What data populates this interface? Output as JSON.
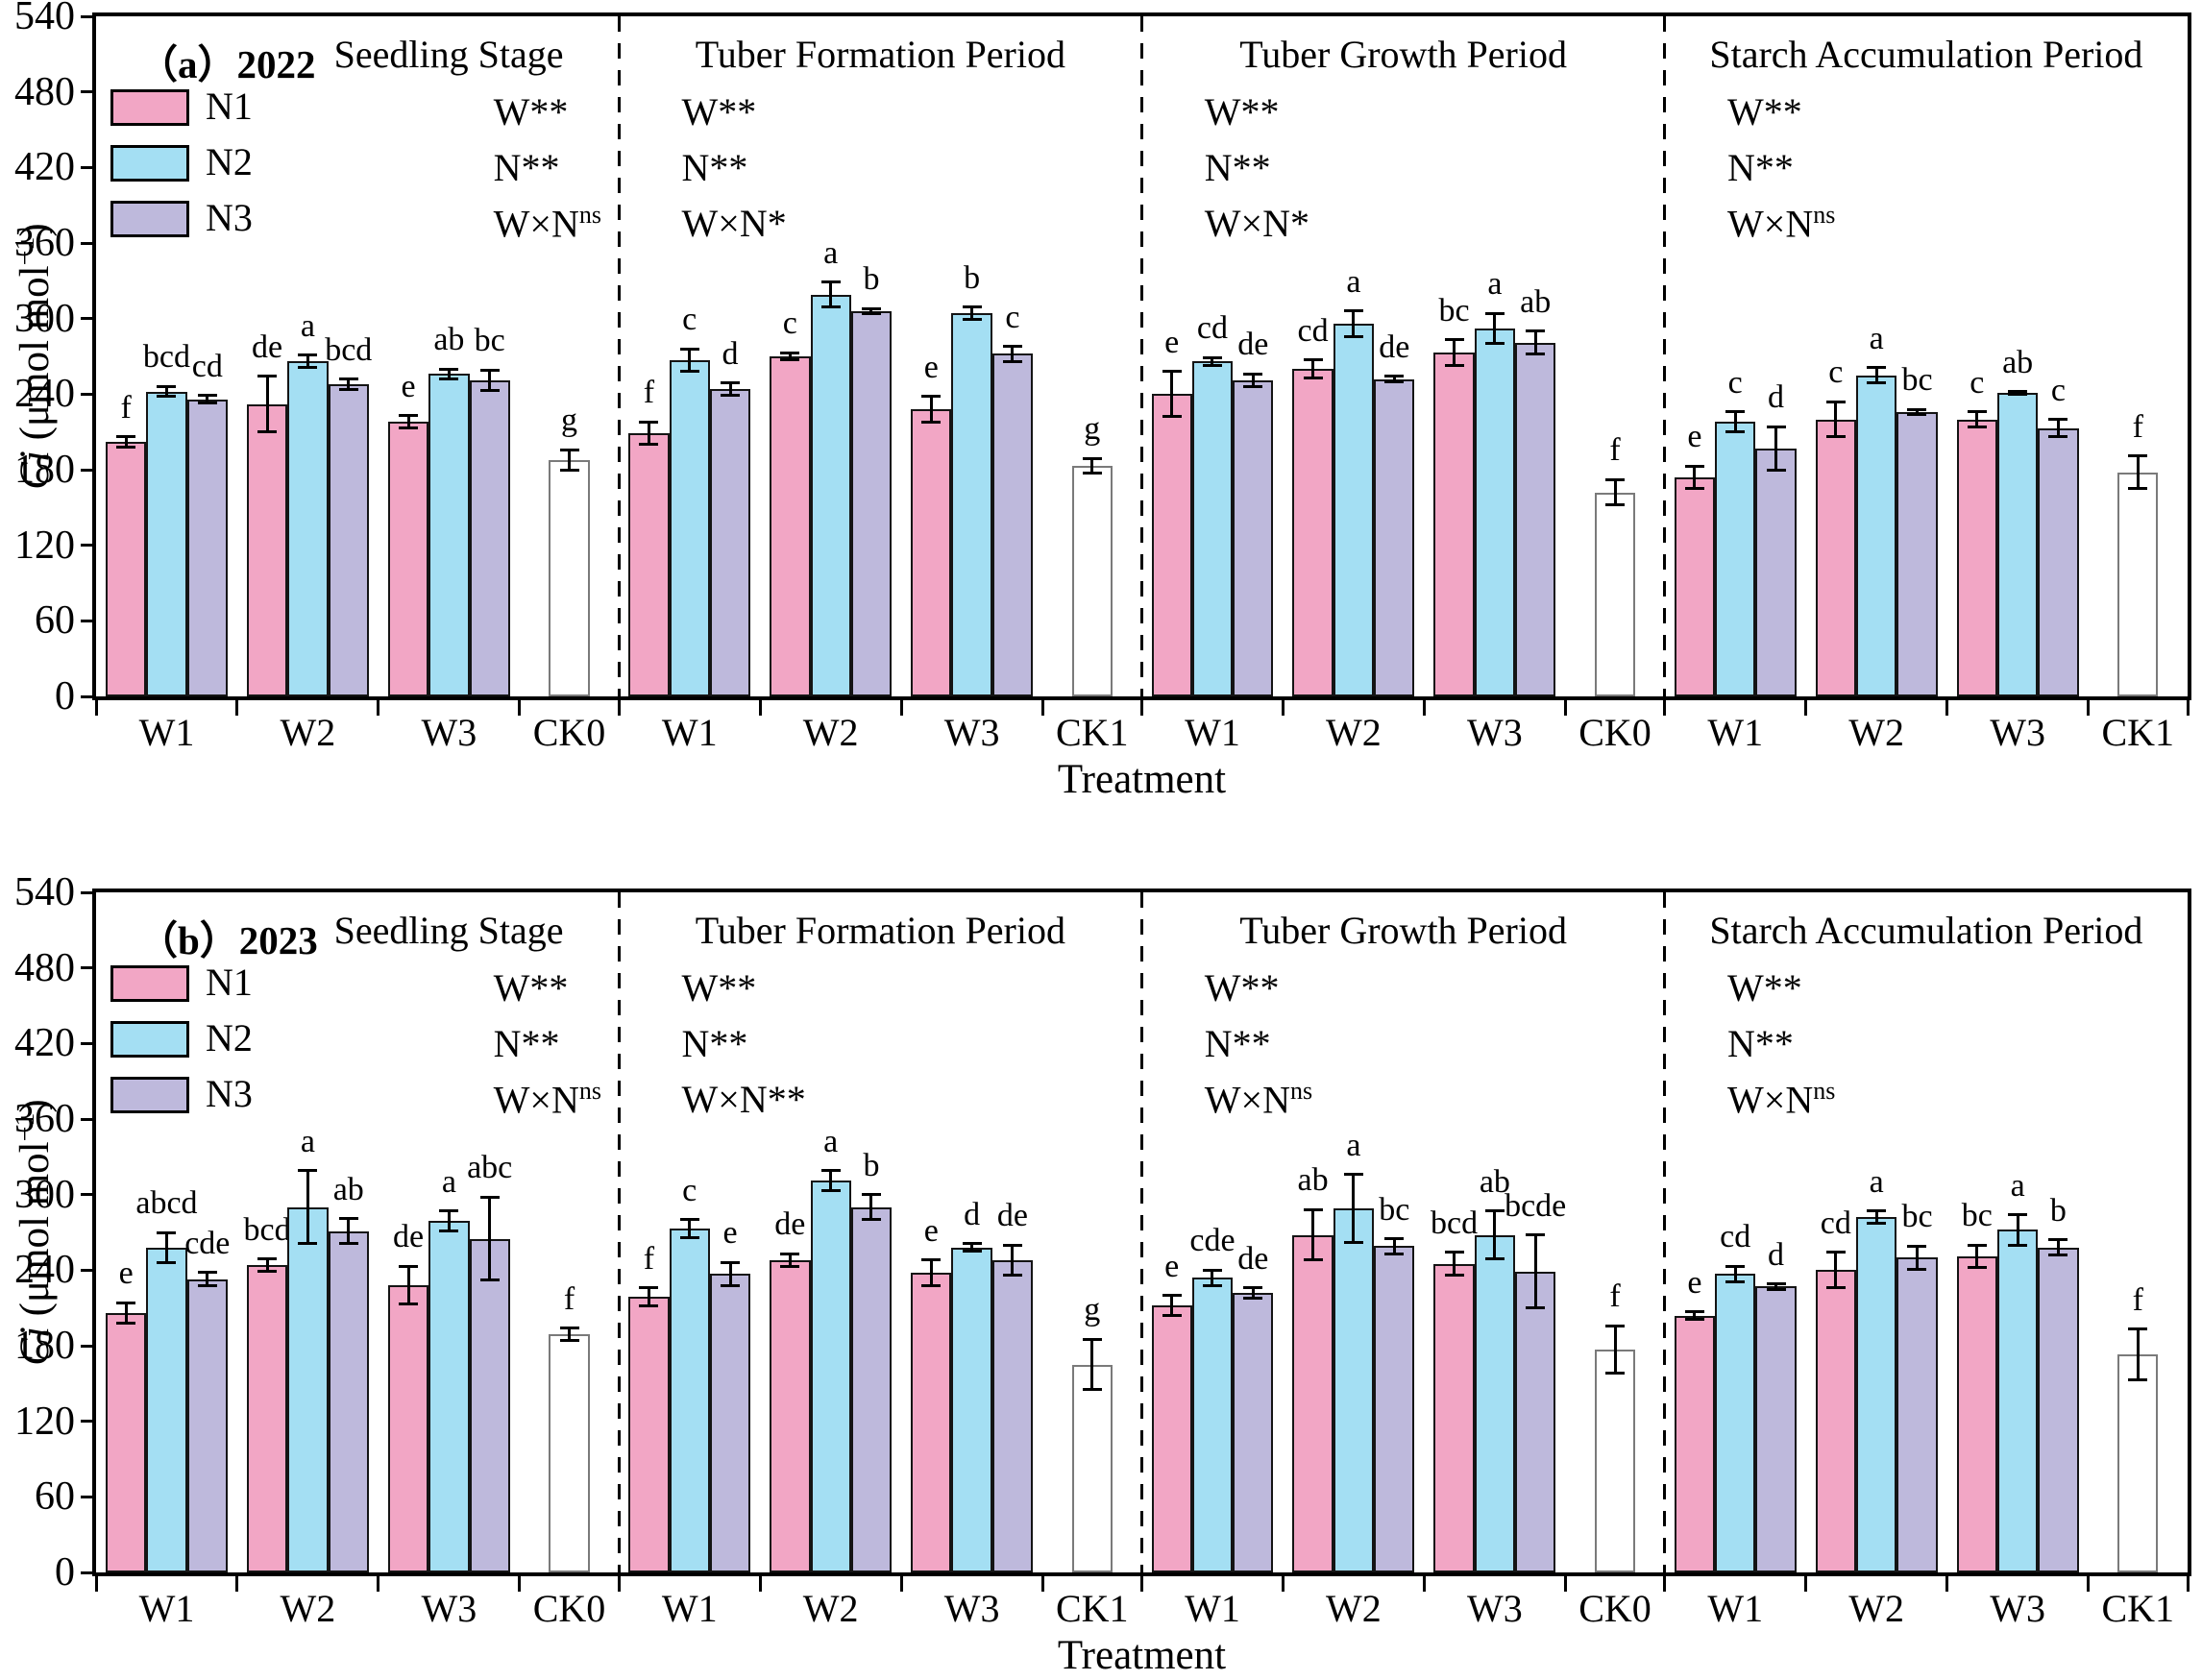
{
  "x_axis": {
    "title": "Treatment"
  },
  "y_axis": {
    "label_italic": "Ci",
    "label_pre": " (μmol mol",
    "label_sup": "−1",
    "label_post": ")"
  },
  "legend": {
    "items": [
      {
        "label": "N1",
        "color": "#F2A6C5"
      },
      {
        "label": "N2",
        "color": "#A4DFF3"
      },
      {
        "label": "N3",
        "color": "#BEB9DC"
      }
    ]
  },
  "colors": {
    "control_fill": "#FFFFFF",
    "axis": "#000000",
    "accent_pink": "#F2A6C5",
    "accent_blue": "#A4DFF3",
    "accent_purple": "#BEB9DC"
  },
  "chart_data": [
    {
      "type": "bar",
      "panel_label": "（a）",
      "year": "2022",
      "ylim": [
        0,
        540
      ],
      "yticks": [
        0,
        60,
        120,
        180,
        240,
        300,
        360,
        420,
        480,
        540
      ],
      "series_names": [
        "N1",
        "N2",
        "N3"
      ],
      "sections": [
        {
          "title": "Seedling Stage",
          "stats": [
            {
              "text": "W**"
            },
            {
              "text": "N**"
            },
            {
              "text": "W×N",
              "sup": "ns"
            }
          ],
          "groups": [
            {
              "label": "W1",
              "bars": [
                {
                  "v": 202,
                  "e": 4,
                  "letter": "f"
                },
                {
                  "v": 242,
                  "e": 4,
                  "letter": "bcd"
                },
                {
                  "v": 236,
                  "e": 3,
                  "letter": "cd"
                }
              ]
            },
            {
              "label": "W2",
              "bars": [
                {
                  "v": 232,
                  "e": 22,
                  "letter": "de"
                },
                {
                  "v": 266,
                  "e": 5,
                  "letter": "a"
                },
                {
                  "v": 248,
                  "e": 4,
                  "letter": "bcd"
                }
              ]
            },
            {
              "label": "W3",
              "bars": [
                {
                  "v": 218,
                  "e": 5,
                  "letter": "e"
                },
                {
                  "v": 256,
                  "e": 4,
                  "letter": "ab"
                },
                {
                  "v": 251,
                  "e": 8,
                  "letter": "bc"
                }
              ]
            },
            {
              "label": "CK0",
              "bars": [
                {
                  "v": 188,
                  "e": 8,
                  "letter": "g"
                }
              ]
            }
          ]
        },
        {
          "title": "Tuber Formation Period",
          "stats": [
            {
              "text": "W**"
            },
            {
              "text": "N**"
            },
            {
              "text": "W×N*"
            }
          ],
          "groups": [
            {
              "label": "W1",
              "bars": [
                {
                  "v": 209,
                  "e": 9,
                  "letter": "f"
                },
                {
                  "v": 267,
                  "e": 9,
                  "letter": "c"
                },
                {
                  "v": 244,
                  "e": 5,
                  "letter": "d"
                }
              ]
            },
            {
              "label": "W2",
              "bars": [
                {
                  "v": 270,
                  "e": 3,
                  "letter": "c"
                },
                {
                  "v": 319,
                  "e": 10,
                  "letter": "a"
                },
                {
                  "v": 306,
                  "e": 2,
                  "letter": "b"
                }
              ]
            },
            {
              "label": "W3",
              "bars": [
                {
                  "v": 228,
                  "e": 10,
                  "letter": "e"
                },
                {
                  "v": 304,
                  "e": 5,
                  "letter": "b"
                },
                {
                  "v": 272,
                  "e": 6,
                  "letter": "c"
                }
              ]
            },
            {
              "label": "CK1",
              "bars": [
                {
                  "v": 183,
                  "e": 6,
                  "letter": "g"
                }
              ]
            }
          ]
        },
        {
          "title": "Tuber Growth Period",
          "stats": [
            {
              "text": "W**"
            },
            {
              "text": "N**"
            },
            {
              "text": "W×N*"
            }
          ],
          "groups": [
            {
              "label": "W1",
              "bars": [
                {
                  "v": 240,
                  "e": 18,
                  "letter": "e"
                },
                {
                  "v": 266,
                  "e": 3,
                  "letter": "cd"
                },
                {
                  "v": 251,
                  "e": 5,
                  "letter": "de"
                }
              ]
            },
            {
              "label": "W2",
              "bars": [
                {
                  "v": 260,
                  "e": 7,
                  "letter": "cd"
                },
                {
                  "v": 296,
                  "e": 10,
                  "letter": "a"
                },
                {
                  "v": 252,
                  "e": 2,
                  "letter": "de"
                }
              ]
            },
            {
              "label": "W3",
              "bars": [
                {
                  "v": 273,
                  "e": 10,
                  "letter": "bc"
                },
                {
                  "v": 292,
                  "e": 12,
                  "letter": "a"
                },
                {
                  "v": 281,
                  "e": 9,
                  "letter": "ab"
                }
              ]
            },
            {
              "label": "CK0",
              "bars": [
                {
                  "v": 162,
                  "e": 10,
                  "letter": "f"
                }
              ]
            }
          ]
        },
        {
          "title": "Starch Accumulation Period",
          "stats": [
            {
              "text": "W**"
            },
            {
              "text": "N**"
            },
            {
              "text": "W×N",
              "sup": "ns"
            }
          ],
          "groups": [
            {
              "label": "W1",
              "bars": [
                {
                  "v": 174,
                  "e": 9,
                  "letter": "e"
                },
                {
                  "v": 218,
                  "e": 8,
                  "letter": "c"
                },
                {
                  "v": 197,
                  "e": 17,
                  "letter": "d"
                }
              ]
            },
            {
              "label": "W2",
              "bars": [
                {
                  "v": 220,
                  "e": 14,
                  "letter": "c"
                },
                {
                  "v": 255,
                  "e": 6,
                  "letter": "a"
                },
                {
                  "v": 226,
                  "e": 2,
                  "letter": "bc"
                }
              ]
            },
            {
              "label": "W3",
              "bars": [
                {
                  "v": 220,
                  "e": 6,
                  "letter": "c"
                },
                {
                  "v": 241,
                  "e": 1,
                  "letter": "ab"
                },
                {
                  "v": 213,
                  "e": 7,
                  "letter": "c"
                }
              ]
            },
            {
              "label": "CK1",
              "bars": [
                {
                  "v": 178,
                  "e": 13,
                  "letter": "f"
                }
              ]
            }
          ]
        }
      ]
    },
    {
      "type": "bar",
      "panel_label": "（b）",
      "year": "2023",
      "ylim": [
        0,
        540
      ],
      "yticks": [
        0,
        60,
        120,
        180,
        240,
        300,
        360,
        420,
        480,
        540
      ],
      "series_names": [
        "N1",
        "N2",
        "N3"
      ],
      "sections": [
        {
          "title": "Seedling Stage",
          "stats": [
            {
              "text": "W**"
            },
            {
              "text": "N**"
            },
            {
              "text": "W×N",
              "sup": "ns"
            }
          ],
          "groups": [
            {
              "label": "W1",
              "bars": [
                {
                  "v": 206,
                  "e": 8,
                  "letter": "e"
                },
                {
                  "v": 258,
                  "e": 12,
                  "letter": "abcd"
                },
                {
                  "v": 233,
                  "e": 5,
                  "letter": "cde"
                }
              ]
            },
            {
              "label": "W2",
              "bars": [
                {
                  "v": 244,
                  "e": 5,
                  "letter": "bcd"
                },
                {
                  "v": 290,
                  "e": 29,
                  "letter": "a"
                },
                {
                  "v": 271,
                  "e": 10,
                  "letter": "ab"
                }
              ]
            },
            {
              "label": "W3",
              "bars": [
                {
                  "v": 228,
                  "e": 15,
                  "letter": "de"
                },
                {
                  "v": 279,
                  "e": 8,
                  "letter": "a"
                },
                {
                  "v": 265,
                  "e": 33,
                  "letter": "abc"
                }
              ]
            },
            {
              "label": "CK0",
              "bars": [
                {
                  "v": 189,
                  "e": 5,
                  "letter": "f"
                }
              ]
            }
          ]
        },
        {
          "title": "Tuber Formation Period",
          "stats": [
            {
              "text": "W**"
            },
            {
              "text": "N**"
            },
            {
              "text": "W×N**"
            }
          ],
          "groups": [
            {
              "label": "W1",
              "bars": [
                {
                  "v": 219,
                  "e": 7,
                  "letter": "f"
                },
                {
                  "v": 273,
                  "e": 7,
                  "letter": "c"
                },
                {
                  "v": 237,
                  "e": 9,
                  "letter": "e"
                }
              ]
            },
            {
              "label": "W2",
              "bars": [
                {
                  "v": 248,
                  "e": 5,
                  "letter": "de"
                },
                {
                  "v": 311,
                  "e": 8,
                  "letter": "a"
                },
                {
                  "v": 290,
                  "e": 10,
                  "letter": "b"
                }
              ]
            },
            {
              "label": "W3",
              "bars": [
                {
                  "v": 238,
                  "e": 10,
                  "letter": "e"
                },
                {
                  "v": 258,
                  "e": 3,
                  "letter": "d"
                },
                {
                  "v": 248,
                  "e": 12,
                  "letter": "de"
                }
              ]
            },
            {
              "label": "CK1",
              "bars": [
                {
                  "v": 165,
                  "e": 20,
                  "letter": "g"
                }
              ]
            }
          ]
        },
        {
          "title": "Tuber Growth Period",
          "stats": [
            {
              "text": "W**"
            },
            {
              "text": "N**"
            },
            {
              "text": "W×N",
              "sup": "ns"
            }
          ],
          "groups": [
            {
              "label": "W1",
              "bars": [
                {
                  "v": 212,
                  "e": 8,
                  "letter": "e"
                },
                {
                  "v": 234,
                  "e": 6,
                  "letter": "cde"
                },
                {
                  "v": 222,
                  "e": 4,
                  "letter": "de"
                }
              ]
            },
            {
              "label": "W2",
              "bars": [
                {
                  "v": 268,
                  "e": 20,
                  "letter": "ab"
                },
                {
                  "v": 289,
                  "e": 27,
                  "letter": "a"
                },
                {
                  "v": 259,
                  "e": 6,
                  "letter": "bc"
                }
              ]
            },
            {
              "label": "W3",
              "bars": [
                {
                  "v": 245,
                  "e": 9,
                  "letter": "bcd"
                },
                {
                  "v": 268,
                  "e": 19,
                  "letter": "ab"
                },
                {
                  "v": 239,
                  "e": 29,
                  "letter": "bcde"
                }
              ]
            },
            {
              "label": "CK0",
              "bars": [
                {
                  "v": 177,
                  "e": 19,
                  "letter": "f"
                }
              ]
            }
          ]
        },
        {
          "title": "Starch Accumulation Period",
          "stats": [
            {
              "text": "W**"
            },
            {
              "text": "N**"
            },
            {
              "text": "W×N",
              "sup": "ns"
            }
          ],
          "groups": [
            {
              "label": "W1",
              "bars": [
                {
                  "v": 204,
                  "e": 3,
                  "letter": "e"
                },
                {
                  "v": 237,
                  "e": 6,
                  "letter": "cd"
                },
                {
                  "v": 227,
                  "e": 2,
                  "letter": "d"
                }
              ]
            },
            {
              "label": "W2",
              "bars": [
                {
                  "v": 240,
                  "e": 14,
                  "letter": "cd"
                },
                {
                  "v": 282,
                  "e": 5,
                  "letter": "a"
                },
                {
                  "v": 250,
                  "e": 9,
                  "letter": "bc"
                }
              ]
            },
            {
              "label": "W3",
              "bars": [
                {
                  "v": 251,
                  "e": 9,
                  "letter": "bc"
                },
                {
                  "v": 272,
                  "e": 12,
                  "letter": "a"
                },
                {
                  "v": 258,
                  "e": 6,
                  "letter": "b"
                }
              ]
            },
            {
              "label": "CK1",
              "bars": [
                {
                  "v": 173,
                  "e": 20,
                  "letter": "f"
                }
              ]
            }
          ]
        }
      ]
    }
  ]
}
